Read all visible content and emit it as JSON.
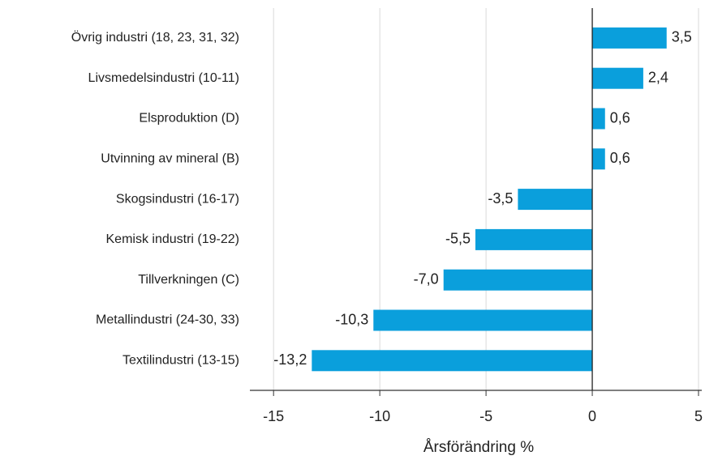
{
  "chart_data": {
    "type": "bar",
    "orientation": "horizontal",
    "xlabel": "Årsförändring %",
    "categories": [
      "Övrig industri (18, 23, 31, 32)",
      "Livsmedelsindustri (10-11)",
      "Elsproduktion (D)",
      "Utvinning av mineral (B)",
      "Skogsindustri (16-17)",
      "Kemisk industri (19-22)",
      "Tillverkningen (C)",
      "Metallindustri (24-30, 33)",
      "Textilindustri (13-15)"
    ],
    "values": [
      3.5,
      2.4,
      0.6,
      0.6,
      -3.5,
      -5.5,
      -7.0,
      -10.3,
      -13.2
    ],
    "value_labels": [
      "3,5",
      "2,4",
      "0,6",
      "0,6",
      "-3,5",
      "-5,5",
      "-7,0",
      "-10,3",
      "-13,2"
    ],
    "color": "#0a9fdc",
    "xlim": [
      -16,
      5
    ],
    "xticks": [
      -15,
      -10,
      -5,
      0,
      5
    ],
    "grid": true
  }
}
